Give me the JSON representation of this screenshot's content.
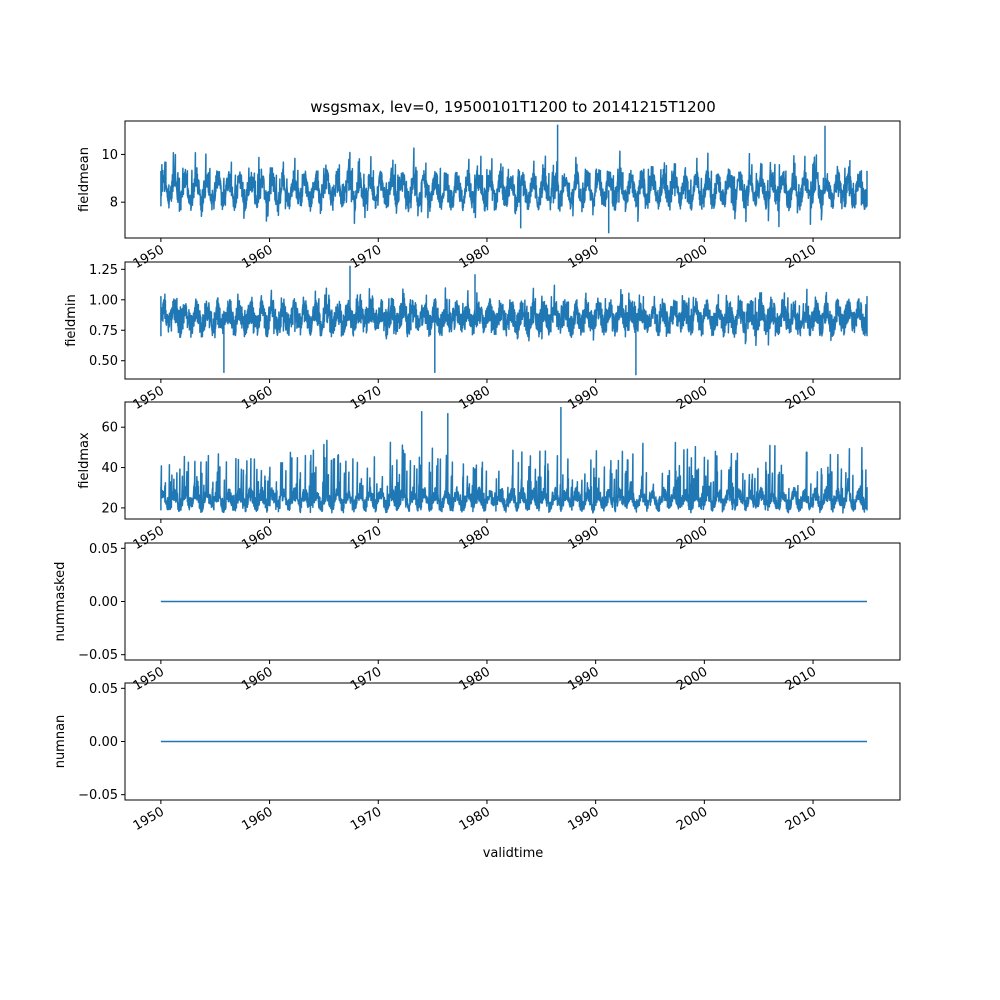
{
  "chart_data": {
    "type": "line",
    "title": "wsgsmax, lev=0, 19500101T1200 to 20141215T1200",
    "xlabel": "validtime",
    "xlim": [
      1946.7,
      2018.0
    ],
    "x_range": [
      1950.0,
      2014.96
    ],
    "x_ticks": [
      1950,
      1960,
      1970,
      1980,
      1990,
      2000,
      2010
    ],
    "x_tick_labels": [
      "1950",
      "1960",
      "1970",
      "1980",
      "1990",
      "2000",
      "2010"
    ],
    "series_color": "#1f77b4",
    "panels": [
      {
        "ylabel": "fieldmean",
        "ylim": [
          6.5,
          11.4
        ],
        "y_ticks": [
          8,
          10
        ],
        "y_tick_labels": [
          "8",
          "10"
        ],
        "base": 8.5,
        "noise": 0.45,
        "seasonal_amp": 0.45,
        "spike": 1.1,
        "min": 6.7,
        "max": 11.25,
        "extremes": [
          [
            1986.5,
            11.25
          ],
          [
            1991.2,
            6.7
          ],
          [
            2011.1,
            11.2
          ],
          [
            1983.1,
            6.9
          ]
        ]
      },
      {
        "ylabel": "fieldmin",
        "ylim": [
          0.35,
          1.31
        ],
        "y_ticks": [
          0.5,
          0.75,
          1.0,
          1.25
        ],
        "y_tick_labels": [
          "0.50",
          "0.75",
          "1.00",
          "1.25"
        ],
        "base": 0.85,
        "noise": 0.1,
        "seasonal_amp": 0.06,
        "spike": 0.15,
        "min": 0.38,
        "max": 1.28,
        "extremes": [
          [
            1967.4,
            1.28
          ],
          [
            1975.2,
            0.4
          ],
          [
            1955.8,
            0.4
          ],
          [
            1978.9,
            1.21
          ],
          [
            1993.7,
            0.38
          ]
        ]
      },
      {
        "ylabel": "fieldmax",
        "ylim": [
          14.5,
          72.5
        ],
        "y_ticks": [
          20,
          40,
          60
        ],
        "y_tick_labels": [
          "20",
          "40",
          "60"
        ],
        "base": 24.0,
        "noise": 3.5,
        "seasonal_amp": 3.0,
        "spike": 25.0,
        "min": 17.0,
        "max": 70.0,
        "extremes": [
          [
            1986.8,
            70.0
          ],
          [
            1974.0,
            68.0
          ],
          [
            1976.4,
            67.0
          ]
        ]
      },
      {
        "ylabel": "nummasked",
        "ylim": [
          -0.055,
          0.055
        ],
        "y_ticks": [
          -0.05,
          0.0,
          0.05
        ],
        "y_tick_labels": [
          "−0.05",
          "0.00",
          "0.05"
        ],
        "constant": 0.0
      },
      {
        "ylabel": "numnan",
        "ylim": [
          -0.055,
          0.055
        ],
        "y_ticks": [
          -0.05,
          0.0,
          0.05
        ],
        "y_tick_labels": [
          "−0.05",
          "0.00",
          "0.05"
        ],
        "constant": 0.0
      }
    ]
  }
}
